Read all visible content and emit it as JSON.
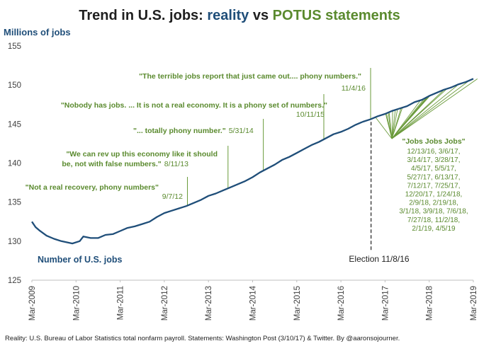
{
  "chart_data": {
    "type": "line",
    "title_parts": [
      "Trend in U.S. jobs: ",
      "reality",
      " vs ",
      "POTUS statements"
    ],
    "ylabel": "Millions of jobs",
    "series_label": "Number of U.S. jobs",
    "ylim": [
      125,
      155
    ],
    "yticks": [
      125,
      130,
      135,
      140,
      145,
      150,
      155
    ],
    "xlim": [
      2009.167,
      2019.167
    ],
    "xticks": [
      {
        "label": "Mar-2009",
        "x": 2009.167
      },
      {
        "label": "Mar-2010",
        "x": 2010.167
      },
      {
        "label": "Mar-2011",
        "x": 2011.167
      },
      {
        "label": "Mar-2012",
        "x": 2012.167
      },
      {
        "label": "Mar-2013",
        "x": 2013.167
      },
      {
        "label": "Mar-2014",
        "x": 2014.167
      },
      {
        "label": "Mar-2015",
        "x": 2015.167
      },
      {
        "label": "Mar-2016",
        "x": 2016.167
      },
      {
        "label": "Mar-2017",
        "x": 2017.167
      },
      {
        "label": "Mar-2018",
        "x": 2018.167
      },
      {
        "label": "Mar-2019",
        "x": 2019.167
      }
    ],
    "series": [
      {
        "name": "Number of U.S. jobs",
        "color": "#1f4e79",
        "x": [
          2009.167,
          2009.25,
          2009.333,
          2009.5,
          2009.667,
          2009.833,
          2010.0,
          2010.083,
          2010.25,
          2010.333,
          2010.5,
          2010.667,
          2010.833,
          2011.0,
          2011.167,
          2011.333,
          2011.5,
          2011.667,
          2011.833,
          2012.0,
          2012.167,
          2012.333,
          2012.5,
          2012.667,
          2012.833,
          2013.0,
          2013.167,
          2013.333,
          2013.5,
          2013.667,
          2013.833,
          2014.0,
          2014.167,
          2014.333,
          2014.5,
          2014.667,
          2014.833,
          2015.0,
          2015.167,
          2015.333,
          2015.5,
          2015.667,
          2015.833,
          2016.0,
          2016.167,
          2016.333,
          2016.5,
          2016.667,
          2016.833,
          2017.0,
          2017.167,
          2017.333,
          2017.5,
          2017.667,
          2017.833,
          2018.0,
          2018.167,
          2018.333,
          2018.5,
          2018.667,
          2018.833,
          2019.0,
          2019.167
        ],
        "values": [
          132.5,
          131.8,
          131.4,
          130.7,
          130.3,
          130.0,
          129.8,
          129.7,
          130.0,
          130.6,
          130.4,
          130.4,
          130.8,
          130.9,
          131.3,
          131.7,
          131.9,
          132.2,
          132.5,
          133.1,
          133.6,
          133.9,
          134.2,
          134.5,
          134.9,
          135.3,
          135.8,
          136.1,
          136.5,
          136.9,
          137.3,
          137.7,
          138.2,
          138.8,
          139.3,
          139.8,
          140.4,
          140.8,
          141.3,
          141.8,
          142.3,
          142.7,
          143.2,
          143.7,
          144.0,
          144.4,
          144.9,
          145.3,
          145.6,
          146.0,
          146.3,
          146.7,
          147.0,
          147.3,
          147.8,
          148.1,
          148.6,
          149.0,
          149.4,
          149.7,
          150.1,
          150.4,
          150.8
        ]
      }
    ],
    "election": {
      "x": 2016.85,
      "label": "Election 11/8/16"
    },
    "annotations": [
      {
        "text": "\"Not a real recovery, phony numbers\"",
        "date": "9/7/12",
        "x": 2012.69
      },
      {
        "text": "\"We can rev up this economy like it should be, not with false numbers.\"",
        "date": "8/11/13",
        "x": 2013.61
      },
      {
        "text": "\"... totally phony number.\"",
        "date": "5/31/14",
        "x": 2014.41
      },
      {
        "text": "\"Nobody has jobs. ... It is not a real economy. It is a phony set of numbers.\"",
        "date": "10/11/15",
        "x": 2015.78
      },
      {
        "text": "\"The terrible jobs report that just came out.... phony numbers.\"",
        "date": "11/4/16",
        "x": 2016.84
      }
    ],
    "jobs_jobs_jobs": {
      "text": "\"Jobs Jobs Jobs\"",
      "dates": [
        "12/13/16, 3/6/17,",
        "3/14/17, 3/28/17,",
        "4/5/17, 5/5/17,",
        "5/27/17, 6/13/17,",
        "7/12/17, 7/25/17,",
        "12/20/17, 1/24/18,",
        "2/9/18, 2/19/18,",
        "3/1/18, 3/9/18, 7/6/18,",
        "7/27/18, 11/2/18,",
        "2/1/19, 4/5/19"
      ],
      "points_x": [
        2016.95,
        2017.18,
        2017.2,
        2017.24,
        2017.26,
        2017.34,
        2017.4,
        2017.45,
        2017.53,
        2017.56,
        2017.97,
        2018.06,
        2018.11,
        2018.13,
        2018.16,
        2018.19,
        2018.51,
        2018.57,
        2018.84,
        2019.08,
        2019.26
      ]
    }
  },
  "footer": "Reality: U.S. Bureau of Labor Statistics total nonfarm payroll. Statements: Washington Post (3/10/17) & Twitter. By @aaronsojourner."
}
